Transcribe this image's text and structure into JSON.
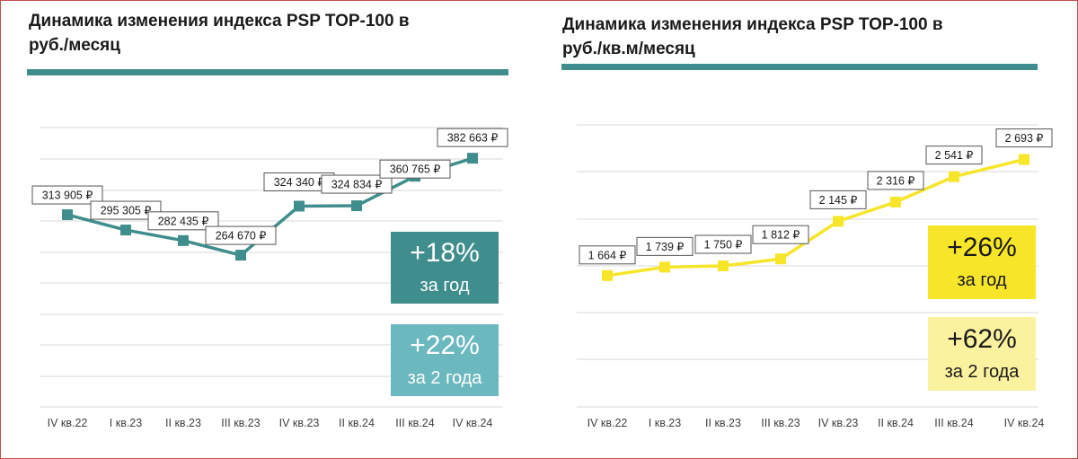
{
  "charts": [
    {
      "title_line1": "Динамика изменения индекса PSP TOP-100 в",
      "title_line2": "руб./месяц",
      "accent_color": "#3f8d8c",
      "badges": [
        {
          "pct": "+18%",
          "period": "за год",
          "bg": "#3f8d8c",
          "fg": "#ffffff"
        },
        {
          "pct": "+22%",
          "period": "за 2 года",
          "bg": "#6bb8be",
          "fg": "#ffffff"
        }
      ]
    },
    {
      "title_line1": "Динамика изменения индекса PSP TOP-100 в",
      "title_line2": "руб./кв.м/месяц",
      "accent_color": "#3f8d8c",
      "badges": [
        {
          "pct": "+26%",
          "period": "за год",
          "bg": "#f7e52a",
          "fg": "#1a1a1a"
        },
        {
          "pct": "+62%",
          "period": "за 2 года",
          "bg": "#fbf2a0",
          "fg": "#1a1a1a"
        }
      ]
    }
  ],
  "chart_data": [
    {
      "type": "line",
      "title": "Динамика изменения индекса PSP TOP-100 в руб./месяц",
      "categories": [
        "IV кв.22",
        "I кв.23",
        "II кв.23",
        "III кв.23",
        "IV кв.23",
        "II кв.24",
        "III кв.24",
        "IV кв.24"
      ],
      "values": [
        313905,
        295305,
        282435,
        264670,
        324340,
        324834,
        360765,
        382663
      ],
      "data_labels": [
        "313 905 ₽",
        "295 305 ₽",
        "282 435 ₽",
        "264 670 ₽",
        "324 340 ₽",
        "324 834 ₽",
        "360 765 ₽",
        "382 663 ₽"
      ],
      "line_color": "#3f8d8c",
      "ylim": [
        80000,
        420000
      ],
      "grid": true
    },
    {
      "type": "line",
      "title": "Динамика изменения индекса PSP TOP-100 в руб./кв.м/месяц",
      "categories": [
        "IV кв.22",
        "I кв.23",
        "II кв.23",
        "III кв.23",
        "IV кв.23",
        "II кв.24",
        "III кв.24",
        "IV кв.24"
      ],
      "values": [
        1664,
        1739,
        1750,
        1812,
        2145,
        2316,
        2541,
        2693
      ],
      "data_labels": [
        "1 664 ₽",
        "1 739 ₽",
        "1 750 ₽",
        "1 812 ₽",
        "2 145 ₽",
        "2 316 ₽",
        "2 541 ₽",
        "2 693 ₽"
      ],
      "line_color": "#f7e52a",
      "ylim": [
        500,
        3000
      ],
      "grid": true
    }
  ]
}
